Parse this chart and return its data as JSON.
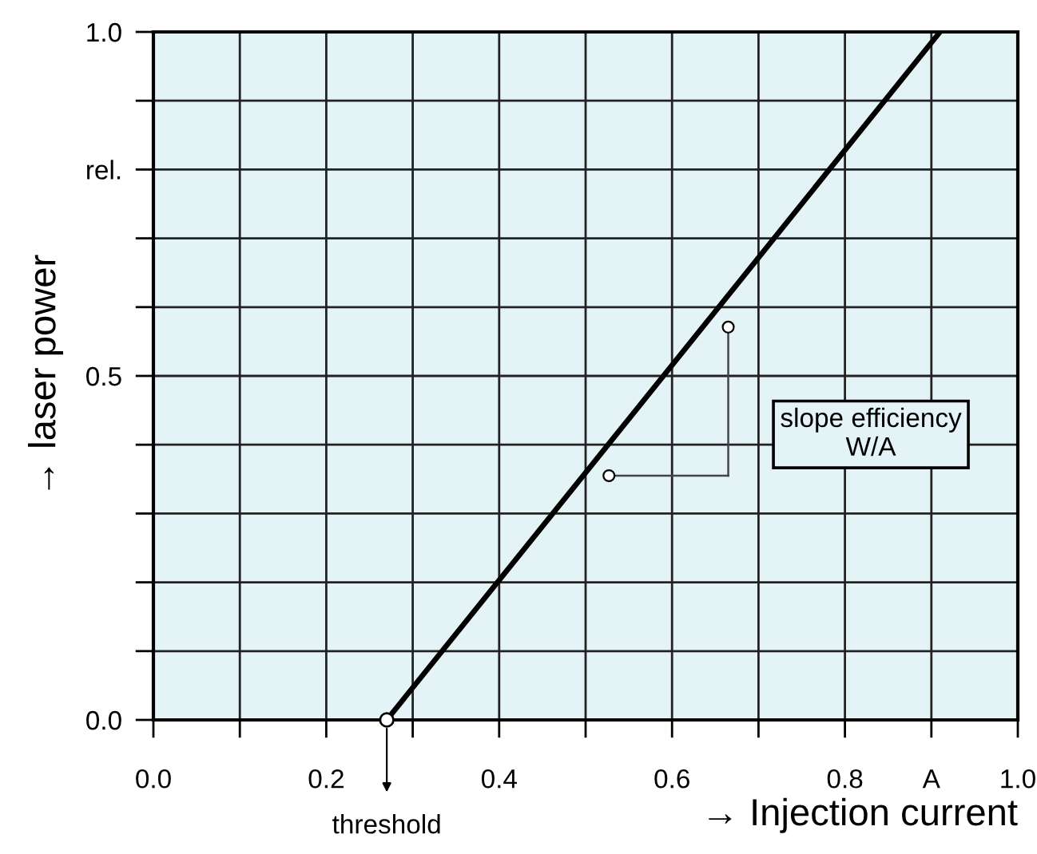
{
  "chart_data": {
    "type": "line",
    "xlabel": "→ Injection current",
    "ylabel": "→ laser power",
    "series": [
      {
        "color": "#000000",
        "x": [
          0.27,
          0.91
        ],
        "values": [
          0,
          1.0
        ]
      }
    ],
    "xlim": [
      0,
      1.0
    ],
    "ylim": [
      0,
      1.0
    ],
    "xticks": [
      {
        "value": 0,
        "label": "0.0"
      },
      {
        "value": 0.1,
        "label": null
      },
      {
        "value": 0.2,
        "label": "0.2"
      },
      {
        "value": 0.3,
        "label": null
      },
      {
        "value": 0.4,
        "label": "0.4"
      },
      {
        "value": 0.5,
        "label": null
      },
      {
        "value": 0.6,
        "label": "0.6"
      },
      {
        "value": 0.7,
        "label": null
      },
      {
        "value": 0.8,
        "label": "0.8"
      },
      {
        "value": 0.9,
        "label": "A"
      },
      {
        "value": 1.0,
        "label": "1.0"
      }
    ],
    "yticks": [
      {
        "value": 0,
        "label": "0.0"
      },
      {
        "value": 0.1,
        "label": null
      },
      {
        "value": 0.2,
        "label": null
      },
      {
        "value": 0.3,
        "label": null
      },
      {
        "value": 0.4,
        "label": null
      },
      {
        "value": 0.5,
        "label": "0.5"
      },
      {
        "value": 0.6,
        "label": null
      },
      {
        "value": 0.7,
        "label": null
      },
      {
        "value": 0.8,
        "label": "rel."
      },
      {
        "value": 0.9,
        "label": null
      },
      {
        "value": 1.0,
        "label": "1.0"
      }
    ],
    "grid": true,
    "line_style": "solid",
    "annotations": [
      {
        "text": "threshold",
        "x": 0.27,
        "y": 0
      },
      "slope efficiency\nW/A"
    ]
  }
}
